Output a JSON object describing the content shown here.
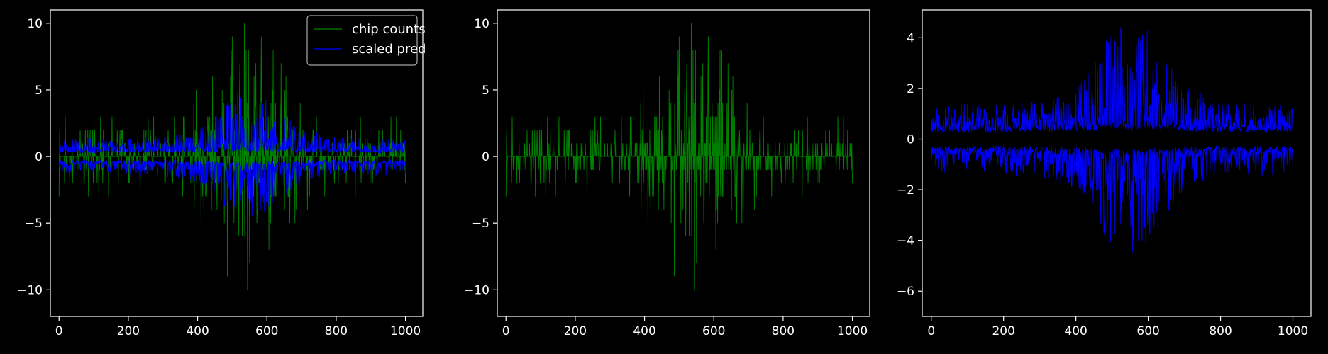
{
  "figure": {
    "background": "#000000",
    "axis_color": "#ffffff"
  },
  "chart_data": [
    {
      "type": "line",
      "panel": "left",
      "xlim": [
        -25,
        1050
      ],
      "ylim": [
        -12,
        11
      ],
      "xticks": [
        0,
        200,
        400,
        600,
        800,
        1000
      ],
      "yticks": [
        -10,
        -5,
        0,
        5,
        10
      ],
      "xtick_labels": [
        "0",
        "200",
        "400",
        "600",
        "800",
        "1000"
      ],
      "ytick_labels": [
        "−10",
        "−5",
        "0",
        "5",
        "10"
      ],
      "legend": {
        "placement": "top-right"
      },
      "series": [
        {
          "name": "chip counts",
          "color": "#008000",
          "kind": "counts",
          "seed": 7,
          "n": 1000
        },
        {
          "name": "scaled pred",
          "color": "#0000ff",
          "kind": "pred_dual",
          "seed": 11,
          "n": 1000,
          "scale": 1.0
        }
      ]
    },
    {
      "type": "line",
      "panel": "middle",
      "xlim": [
        -25,
        1050
      ],
      "ylim": [
        -12,
        11
      ],
      "xticks": [
        0,
        200,
        400,
        600,
        800,
        1000
      ],
      "yticks": [
        -10,
        -5,
        0,
        5,
        10
      ],
      "xtick_labels": [
        "0",
        "200",
        "400",
        "600",
        "800",
        "1000"
      ],
      "ytick_labels": [
        "−10",
        "−5",
        "0",
        "5",
        "10"
      ],
      "series": [
        {
          "color": "#008000",
          "kind": "counts",
          "seed": 7,
          "n": 1000
        }
      ]
    },
    {
      "type": "line",
      "panel": "right",
      "xlim": [
        -25,
        1050
      ],
      "ylim": [
        -7,
        5.1
      ],
      "xticks": [
        0,
        200,
        400,
        600,
        800,
        1000
      ],
      "yticks": [
        -6,
        -4,
        -2,
        0,
        2,
        4
      ],
      "xtick_labels": [
        "0",
        "200",
        "400",
        "600",
        "800",
        "1000"
      ],
      "ytick_labels": [
        "−6",
        "−4",
        "−2",
        "0",
        "2",
        "4"
      ],
      "series": [
        {
          "color": "#0000ff",
          "kind": "pred_dual",
          "seed": 11,
          "n": 1000,
          "scale": 1.0
        }
      ]
    }
  ]
}
